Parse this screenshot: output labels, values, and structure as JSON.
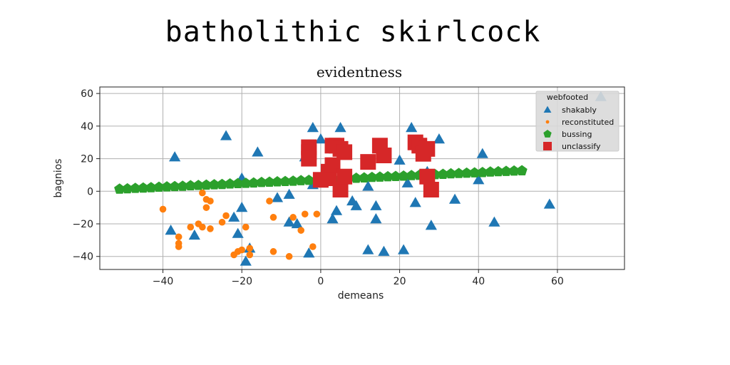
{
  "suptitle": "batholithic skirlcock",
  "chart_data": {
    "type": "scatter",
    "title": "evidentness",
    "xlabel": "demeans",
    "ylabel": "bagnios",
    "xlim": [
      -56,
      77
    ],
    "ylim": [
      -48,
      64
    ],
    "xticks": [
      -40,
      -20,
      0,
      20,
      40,
      60
    ],
    "yticks": [
      -40,
      -20,
      0,
      20,
      40,
      60
    ],
    "grid": true,
    "legend": {
      "title": "webfooted",
      "placement": "top-right"
    },
    "series": [
      {
        "name": "shakably",
        "marker": "triangle",
        "color": "#1f77b4",
        "points": [
          [
            -37,
            21
          ],
          [
            -38,
            -24
          ],
          [
            -32,
            -27
          ],
          [
            -24,
            34
          ],
          [
            -22,
            -16
          ],
          [
            -21,
            -26
          ],
          [
            -20,
            8
          ],
          [
            -20,
            -10
          ],
          [
            -19,
            -43
          ],
          [
            -18,
            -35
          ],
          [
            -16,
            24
          ],
          [
            -11,
            -4
          ],
          [
            -8,
            -2
          ],
          [
            -8,
            -19
          ],
          [
            -6,
            -20
          ],
          [
            -4,
            21
          ],
          [
            -3,
            -38
          ],
          [
            -2,
            4
          ],
          [
            -2,
            39
          ],
          [
            0,
            32
          ],
          [
            3,
            -17
          ],
          [
            4,
            -12
          ],
          [
            5,
            39
          ],
          [
            5,
            0
          ],
          [
            8,
            -6
          ],
          [
            9,
            -9
          ],
          [
            12,
            3
          ],
          [
            12,
            -36
          ],
          [
            14,
            -9
          ],
          [
            14,
            -17
          ],
          [
            16,
            -37
          ],
          [
            20,
            19
          ],
          [
            21,
            -36
          ],
          [
            22,
            5
          ],
          [
            23,
            39
          ],
          [
            24,
            -7
          ],
          [
            27,
            12
          ],
          [
            28,
            -21
          ],
          [
            30,
            32
          ],
          [
            34,
            -5
          ],
          [
            40,
            7
          ],
          [
            41,
            23
          ],
          [
            44,
            -19
          ],
          [
            58,
            -8
          ],
          [
            71,
            58
          ]
        ]
      },
      {
        "name": "reconstituted",
        "marker": "circle",
        "color": "#ff7f0e",
        "points": [
          [
            -40,
            -11
          ],
          [
            -36,
            -28
          ],
          [
            -36,
            -32
          ],
          [
            -36,
            -34
          ],
          [
            -33,
            -22
          ],
          [
            -31,
            -20
          ],
          [
            -30,
            -22
          ],
          [
            -30,
            -1
          ],
          [
            -29,
            -10
          ],
          [
            -29,
            -5
          ],
          [
            -28,
            -6
          ],
          [
            -28,
            -23
          ],
          [
            -25,
            -19
          ],
          [
            -24,
            -15
          ],
          [
            -22,
            -39
          ],
          [
            -21,
            -37
          ],
          [
            -20,
            -36
          ],
          [
            -19,
            -22
          ],
          [
            -18,
            -39
          ],
          [
            -18,
            -35
          ],
          [
            -13,
            -6
          ],
          [
            -12,
            -16
          ],
          [
            -12,
            -37
          ],
          [
            -8,
            -40
          ],
          [
            -7,
            -16
          ],
          [
            -5,
            -24
          ],
          [
            -4,
            -14
          ],
          [
            -2,
            -34
          ],
          [
            -1,
            -14
          ]
        ]
      },
      {
        "name": "bussing",
        "marker": "pentagon",
        "color": "#2ca02c",
        "points": [
          [
            -51,
            1.3
          ],
          [
            -49,
            1.5
          ],
          [
            -47,
            1.8
          ],
          [
            -45,
            2.0
          ],
          [
            -43,
            2.2
          ],
          [
            -41,
            2.5
          ],
          [
            -39,
            2.7
          ],
          [
            -37,
            2.9
          ],
          [
            -35,
            3.1
          ],
          [
            -33,
            3.4
          ],
          [
            -31,
            3.6
          ],
          [
            -29,
            3.8
          ],
          [
            -27,
            4.0
          ],
          [
            -25,
            4.2
          ],
          [
            -23,
            4.5
          ],
          [
            -21,
            4.7
          ],
          [
            -19,
            4.9
          ],
          [
            -17,
            5.1
          ],
          [
            -15,
            5.4
          ],
          [
            -13,
            5.6
          ],
          [
            -11,
            5.8
          ],
          [
            -9,
            6.0
          ],
          [
            -7,
            6.2
          ],
          [
            -5,
            6.5
          ],
          [
            -3,
            6.7
          ],
          [
            -1,
            6.9
          ],
          [
            1,
            7.1
          ],
          [
            3,
            7.3
          ],
          [
            5,
            7.6
          ],
          [
            7,
            7.8
          ],
          [
            9,
            8.0
          ],
          [
            11,
            8.2
          ],
          [
            13,
            8.5
          ],
          [
            15,
            8.7
          ],
          [
            17,
            8.9
          ],
          [
            19,
            9.1
          ],
          [
            21,
            9.3
          ],
          [
            23,
            9.6
          ],
          [
            25,
            9.8
          ],
          [
            27,
            10.0
          ],
          [
            29,
            10.2
          ],
          [
            31,
            10.4
          ],
          [
            33,
            10.7
          ],
          [
            35,
            10.9
          ],
          [
            37,
            11.1
          ],
          [
            39,
            11.3
          ],
          [
            41,
            11.5
          ],
          [
            43,
            11.8
          ],
          [
            45,
            12.0
          ],
          [
            47,
            12.2
          ],
          [
            49,
            12.4
          ],
          [
            51,
            12.6
          ]
        ]
      },
      {
        "name": "unclassify",
        "marker": "square",
        "color": "#d62728",
        "points": [
          [
            -3,
            27
          ],
          [
            -3,
            24
          ],
          [
            -3,
            20
          ],
          [
            0,
            7
          ],
          [
            2,
            12
          ],
          [
            2,
            8
          ],
          [
            3,
            28
          ],
          [
            3,
            16
          ],
          [
            4,
            28
          ],
          [
            5,
            26
          ],
          [
            5,
            1
          ],
          [
            6,
            24
          ],
          [
            6,
            9
          ],
          [
            12,
            18
          ],
          [
            15,
            28
          ],
          [
            16,
            22
          ],
          [
            24,
            30
          ],
          [
            25,
            28
          ],
          [
            26,
            23
          ],
          [
            27,
            9
          ],
          [
            27,
            26
          ],
          [
            28,
            1
          ]
        ]
      }
    ]
  }
}
